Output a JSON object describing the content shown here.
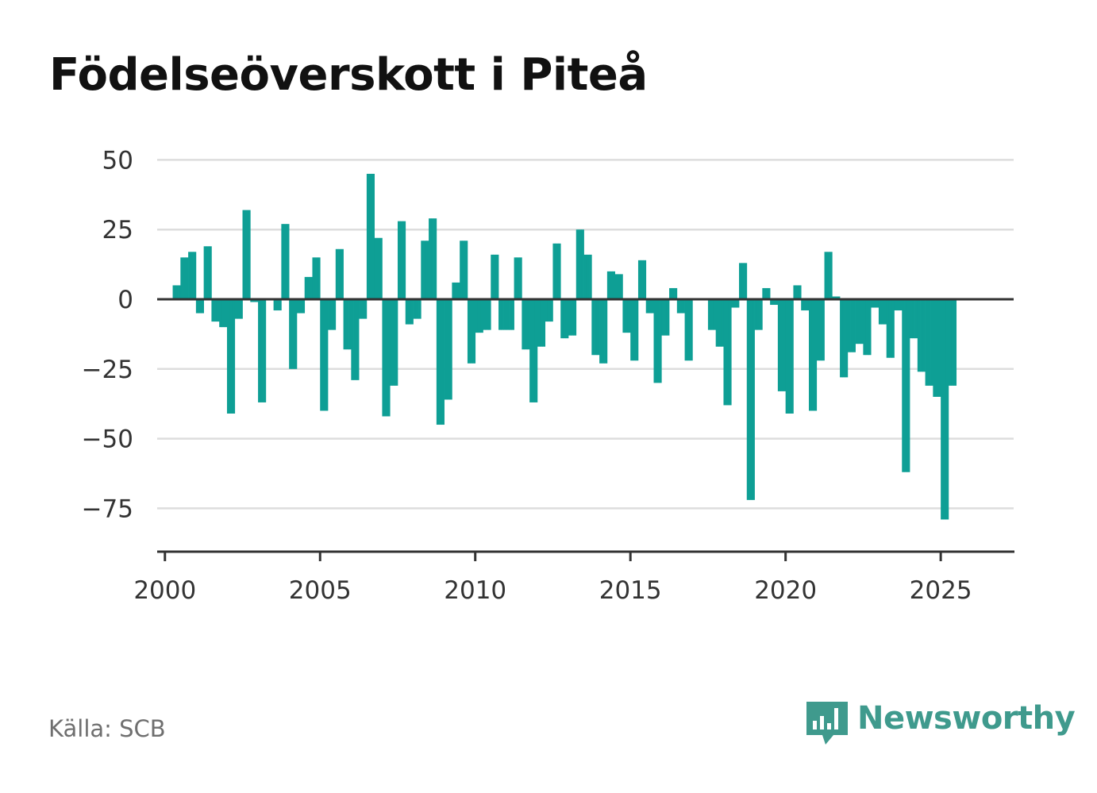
{
  "title": "Födelseöverskott i Piteå",
  "source": "Källa: SCB",
  "brand": {
    "name": "Newsworthy",
    "icon": "newsworthy-logo-icon",
    "color": "#3f9a8d"
  },
  "colors": {
    "bar": "#0e9f95",
    "grid": "#dddddd",
    "axis": "#333333"
  },
  "chart_data": {
    "type": "bar",
    "title": "Födelseöverskott i Piteå",
    "xlabel": "",
    "ylabel": "",
    "xlim": [
      1999.75,
      2027.35
    ],
    "ylim": [
      -91,
      50
    ],
    "yticks": [
      50,
      25,
      0,
      -25,
      -50,
      -75
    ],
    "ytick_labels": [
      "50",
      "25",
      "0",
      "−25",
      "−50",
      "−75"
    ],
    "xticks": [
      2000,
      2005,
      2010,
      2015,
      2020,
      2025
    ],
    "xtick_labels": [
      "2000",
      "2005",
      "2010",
      "2015",
      "2020",
      "2025"
    ],
    "grid": true,
    "legend": "none",
    "series": [
      {
        "x": [
          "2000-01",
          "2000-02",
          "2000-03",
          "2000-04",
          "2000-05",
          "2000-06",
          "2000-07",
          "2000-08",
          "2000-09",
          "2000-10",
          "2000-11",
          "2000-12",
          "2001-01",
          "2001-02",
          "2001-03",
          "2001-04",
          "2001-05",
          "2001-06",
          "2001-07",
          "2001-08",
          "2001-09",
          "2001-10",
          "2001-11",
          "2001-12",
          "2002-01",
          "2002-02",
          "2002-03",
          "2002-04",
          "2002-05",
          "2002-06",
          "2002-07",
          "2002-08",
          "2002-09",
          "2002-10",
          "2002-11",
          "2002-12",
          "2003-01",
          "2003-02",
          "2003-03",
          "2003-04",
          "2003-05",
          "2003-06",
          "2003-07",
          "2003-08",
          "2003-09",
          "2003-10",
          "2003-11",
          "2003-12",
          "2004-01",
          "2004-02",
          "2004-03",
          "2004-04",
          "2004-05",
          "2004-06",
          "2004-07",
          "2004-08",
          "2004-09",
          "2004-10",
          "2004-11",
          "2004-12",
          "2005-01",
          "2005-02",
          "2005-03",
          "2005-04",
          "2005-05",
          "2005-06",
          "2005-07",
          "2005-08",
          "2005-09",
          "2005-10",
          "2005-11",
          "2005-12",
          "2006-01",
          "2006-02",
          "2006-03",
          "2006-04",
          "2006-05",
          "2006-06",
          "2006-07",
          "2006-08",
          "2006-09",
          "2006-10",
          "2006-11",
          "2006-12",
          "2007-01",
          "2007-02",
          "2007-03",
          "2007-04",
          "2007-05",
          "2007-06",
          "2007-07",
          "2007-08",
          "2007-09",
          "2007-10",
          "2007-11",
          "2007-12",
          "2008-01",
          "2008-02",
          "2008-03",
          "2008-04",
          "2008-05",
          "2008-06",
          "2008-07",
          "2008-08",
          "2008-09",
          "2008-10",
          "2008-11",
          "2008-12",
          "2009-01",
          "2009-02",
          "2009-03",
          "2009-04",
          "2009-05",
          "2009-06",
          "2009-07",
          "2009-08",
          "2009-09",
          "2009-10",
          "2009-11",
          "2009-12",
          "2010-01",
          "2010-02",
          "2010-03",
          "2010-04",
          "2010-05",
          "2010-06",
          "2010-07",
          "2010-08",
          "2010-09",
          "2010-10",
          "2010-11",
          "2010-12",
          "2011-01",
          "2011-02",
          "2011-03",
          "2011-04",
          "2011-05",
          "2011-06",
          "2011-07",
          "2011-08",
          "2011-09",
          "2011-10",
          "2011-11",
          "2011-12",
          "2012-01",
          "2012-02",
          "2012-03",
          "2012-04",
          "2012-05",
          "2012-06",
          "2012-07",
          "2012-08",
          "2012-09",
          "2012-10",
          "2012-11",
          "2012-12",
          "2013-01",
          "2013-02",
          "2013-03",
          "2013-04",
          "2013-05",
          "2013-06",
          "2013-07",
          "2013-08",
          "2013-09",
          "2013-10",
          "2013-11",
          "2013-12",
          "2014-01",
          "2014-02",
          "2014-03",
          "2014-04",
          "2014-05",
          "2014-06",
          "2014-07",
          "2014-08",
          "2014-09",
          "2014-10",
          "2014-11",
          "2014-12",
          "2015-01",
          "2015-02",
          "2015-03",
          "2015-04",
          "2015-05",
          "2015-06",
          "2015-07",
          "2015-08",
          "2015-09",
          "2015-10",
          "2015-11",
          "2015-12",
          "2016-01",
          "2016-02",
          "2016-03",
          "2016-04",
          "2016-05",
          "2016-06",
          "2016-07",
          "2016-08",
          "2016-09",
          "2016-10",
          "2016-11",
          "2016-12",
          "2017-01",
          "2017-02",
          "2017-03",
          "2017-04",
          "2017-05",
          "2017-06",
          "2017-07",
          "2017-08",
          "2017-09",
          "2017-10",
          "2017-11",
          "2017-12",
          "2018-01",
          "2018-02",
          "2018-03",
          "2018-04",
          "2018-05",
          "2018-06",
          "2018-07",
          "2018-08",
          "2018-09",
          "2018-10",
          "2018-11",
          "2018-12",
          "2019-01",
          "2019-02",
          "2019-03",
          "2019-04",
          "2019-05",
          "2019-06",
          "2019-07",
          "2019-08",
          "2019-09",
          "2019-10",
          "2019-11",
          "2019-12",
          "2020-01",
          "2020-02",
          "2020-03",
          "2020-04",
          "2020-05",
          "2020-06",
          "2020-07",
          "2020-08",
          "2020-09",
          "2020-10",
          "2020-11",
          "2020-12",
          "2021-01",
          "2021-02",
          "2021-03",
          "2021-04",
          "2021-05",
          "2021-06",
          "2021-07",
          "2021-08",
          "2021-09",
          "2021-10",
          "2021-11",
          "2021-12",
          "2022-01",
          "2022-02",
          "2022-03",
          "2022-04",
          "2022-05",
          "2022-06",
          "2022-07",
          "2022-08",
          "2022-09",
          "2022-10",
          "2022-11",
          "2022-12",
          "2023-01",
          "2023-02",
          "2023-03",
          "2023-04",
          "2023-05",
          "2023-06",
          "2023-07",
          "2023-08",
          "2023-09",
          "2023-10",
          "2023-11",
          "2023-12",
          "2024-01",
          "2024-02",
          "2024-03",
          "2024-04",
          "2024-05",
          "2024-06",
          "2024-07",
          "2024-08",
          "2024-09",
          "2024-10",
          "2024-11",
          "2024-12",
          "2025-01",
          "2025-02",
          "2025-03",
          "2025-04",
          "2025-05",
          "2025-06"
        ],
        "values": [
          0,
          0,
          0,
          5,
          5,
          5,
          15,
          15,
          15,
          17,
          17,
          17,
          -5,
          -5,
          -5,
          19,
          19,
          19,
          -8,
          -8,
          -8,
          -10,
          -10,
          -10,
          -41,
          -41,
          -41,
          -7,
          -7,
          -7,
          32,
          32,
          32,
          -1,
          -1,
          -1,
          -37,
          -37,
          -37,
          0,
          0,
          0,
          -4,
          -4,
          -4,
          27,
          27,
          27,
          -25,
          -25,
          -25,
          -5,
          -5,
          -5,
          8,
          8,
          8,
          15,
          15,
          15,
          -40,
          -40,
          -40,
          -11,
          -11,
          -11,
          18,
          18,
          18,
          -18,
          -18,
          -18,
          -29,
          -29,
          -29,
          -7,
          -7,
          -7,
          45,
          45,
          45,
          22,
          22,
          22,
          -42,
          -42,
          -42,
          -31,
          -31,
          -31,
          28,
          28,
          28,
          -9,
          -9,
          -9,
          -7,
          -7,
          -7,
          21,
          21,
          21,
          29,
          29,
          29,
          -45,
          -45,
          -45,
          -36,
          -36,
          -36,
          6,
          6,
          6,
          21,
          21,
          21,
          -23,
          -23,
          -23,
          -12,
          -12,
          -12,
          -11,
          -11,
          -11,
          16,
          16,
          16,
          -11,
          -11,
          -11,
          -11,
          -11,
          -11,
          15,
          15,
          15,
          -18,
          -18,
          -18,
          -37,
          -37,
          -37,
          -17,
          -17,
          -17,
          -8,
          -8,
          -8,
          20,
          20,
          20,
          -14,
          -14,
          -14,
          -13,
          -13,
          -13,
          25,
          25,
          25,
          16,
          16,
          16,
          -20,
          -20,
          -20,
          -23,
          -23,
          -23,
          10,
          10,
          10,
          9,
          9,
          9,
          -12,
          -12,
          -12,
          -22,
          -22,
          -22,
          14,
          14,
          14,
          -5,
          -5,
          -5,
          -30,
          -30,
          -30,
          -13,
          -13,
          -13,
          4,
          4,
          4,
          -5,
          -5,
          -5,
          -22,
          -22,
          -22,
          0,
          0,
          0,
          0,
          0,
          0,
          -11,
          -11,
          -11,
          -17,
          -17,
          -17,
          -38,
          -38,
          -38,
          -3,
          -3,
          -3,
          13,
          13,
          13,
          -72,
          -72,
          -72,
          -11,
          -11,
          -11,
          4,
          4,
          4,
          -2,
          -2,
          -2,
          -33,
          -33,
          -33,
          -41,
          -41,
          -41,
          5,
          5,
          5,
          -4,
          -4,
          -4,
          -40,
          -40,
          -40,
          -22,
          -22,
          -22,
          17,
          17,
          17,
          1,
          1,
          1,
          -28,
          -28,
          -28,
          -19,
          -19,
          -19,
          -16,
          -16,
          -16,
          -20,
          -20,
          -20,
          -3,
          -3,
          -3,
          -9,
          -9,
          -9,
          -21,
          -21,
          -21,
          -4,
          -4,
          -4,
          -62,
          -62,
          -62,
          -14,
          -14,
          -14,
          -26,
          -26,
          -26,
          -31,
          -31,
          -31,
          -35,
          -35,
          -35,
          -79,
          -79,
          -79,
          -31,
          -31,
          -31
        ]
      }
    ]
  }
}
